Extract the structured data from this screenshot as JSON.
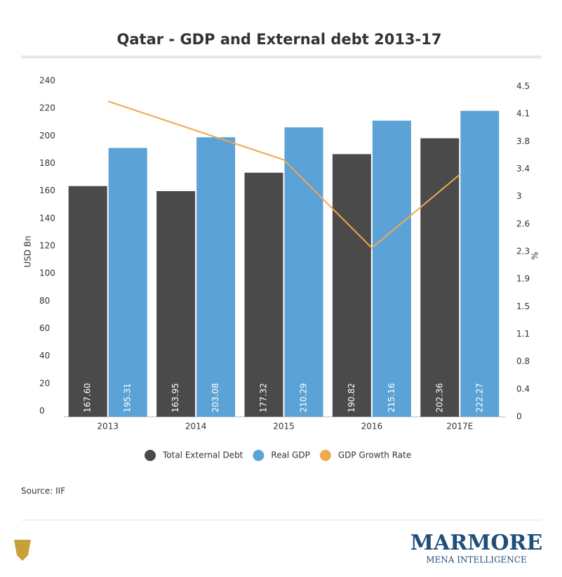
{
  "chart_data": {
    "type": "bar",
    "title": "Qatar - GDP and External debt 2013-17",
    "categories": [
      "2013",
      "2014",
      "2015",
      "2016",
      "2017E"
    ],
    "series": [
      {
        "name": "Total External Debt",
        "color": "#4a4a4a",
        "values": [
          167.6,
          163.95,
          177.32,
          190.82,
          202.36
        ],
        "value_labels": [
          "167.60",
          "163.95",
          "177.32",
          "190.82",
          "202.36"
        ]
      },
      {
        "name": "Real GDP",
        "color": "#5ba3d6",
        "values": [
          195.31,
          203.08,
          210.29,
          215.16,
          222.27
        ],
        "value_labels": [
          "195.31",
          "203.08",
          "210.29",
          "215.16",
          "222.27"
        ]
      },
      {
        "name": "GDP Growth Rate",
        "type": "line",
        "axis": "y2",
        "color": "#f0a850",
        "values": [
          4.3,
          3.9,
          3.5,
          2.3,
          3.3
        ]
      }
    ],
    "ylabel": "USD Bn",
    "y2label": "%",
    "ylim": [
      0,
      240
    ],
    "yticks": [
      0,
      20,
      40,
      60,
      80,
      100,
      120,
      140,
      160,
      180,
      200,
      220,
      240
    ],
    "y2lim": [
      0,
      4.5
    ],
    "y2ticks": [
      0,
      {
        "value": 0.375,
        "label": "0.4"
      },
      {
        "value": 0.75,
        "label": "0.8"
      },
      {
        "value": 1.125,
        "label": "1.1"
      },
      1.5,
      {
        "value": 1.875,
        "label": "1.9"
      },
      {
        "value": 2.25,
        "label": "2.3"
      },
      {
        "value": 2.625,
        "label": "2.6"
      },
      3,
      {
        "value": 3.375,
        "label": "3.4"
      },
      {
        "value": 3.75,
        "label": "3.8"
      },
      {
        "value": 4.125,
        "label": "4.1"
      },
      4.5
    ],
    "grid": false,
    "legend": "bottom",
    "source": "Source: IIF",
    "brand": "MARMORE",
    "brand_tagline": "MENA INTELLIGENCE"
  }
}
